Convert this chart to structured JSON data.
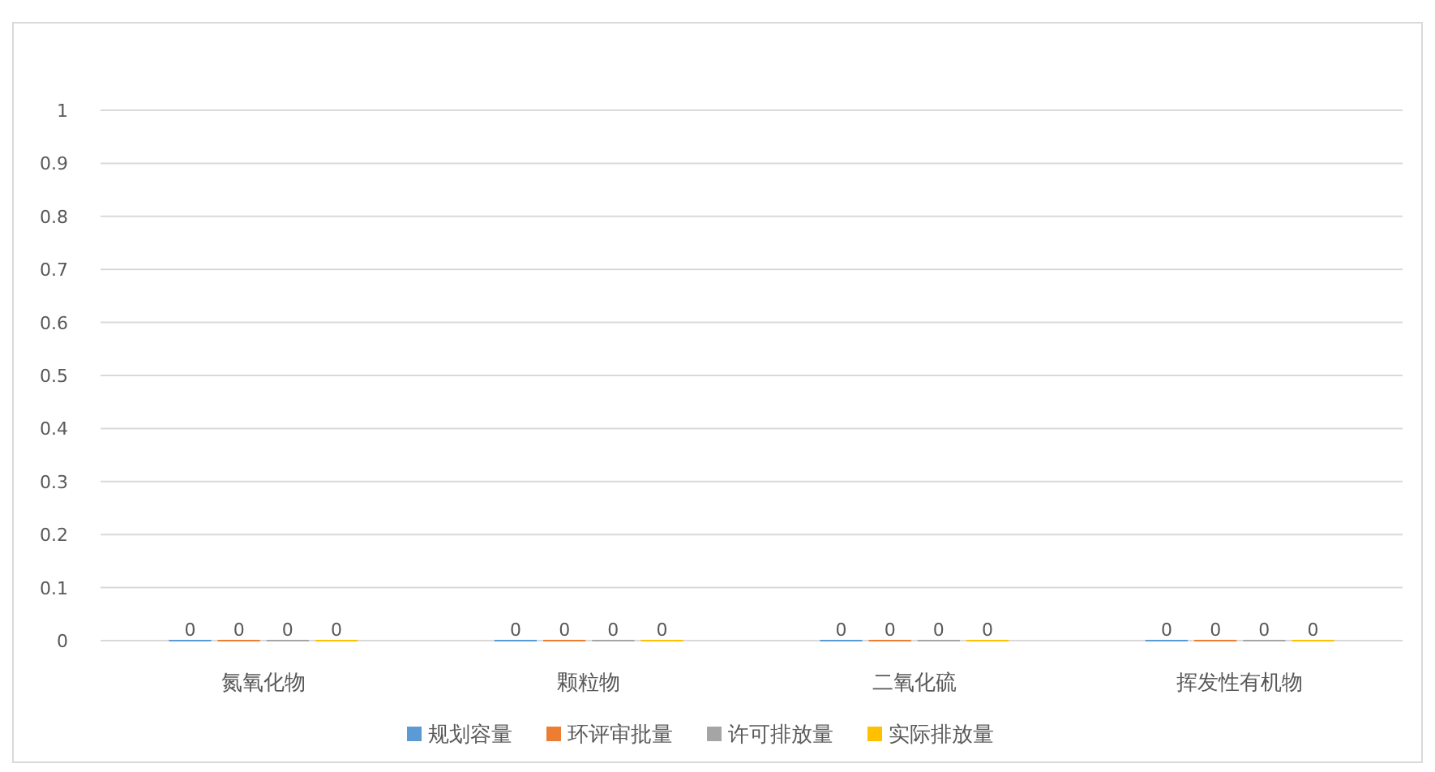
{
  "chart_data": {
    "type": "bar",
    "categories": [
      "氮氧化物",
      "颗粒物",
      "二氧化硫",
      "挥发性有机物"
    ],
    "series": [
      {
        "name": "规划容量",
        "color": "#5b9bd5",
        "values": [
          0,
          0,
          0,
          0
        ]
      },
      {
        "name": "环评审批量",
        "color": "#ed7d31",
        "values": [
          0,
          0,
          0,
          0
        ]
      },
      {
        "name": "许可排放量",
        "color": "#a5a5a5",
        "values": [
          0,
          0,
          0,
          0
        ]
      },
      {
        "name": "实际排放量",
        "color": "#ffc000",
        "values": [
          0,
          0,
          0,
          0
        ]
      }
    ],
    "ylim": [
      0,
      1
    ],
    "yticks": [
      0,
      0.1,
      0.2,
      0.3,
      0.4,
      0.5,
      0.6,
      0.7,
      0.8,
      0.9,
      1
    ],
    "grid": "y",
    "data_labels": true,
    "legend": "bottom"
  }
}
